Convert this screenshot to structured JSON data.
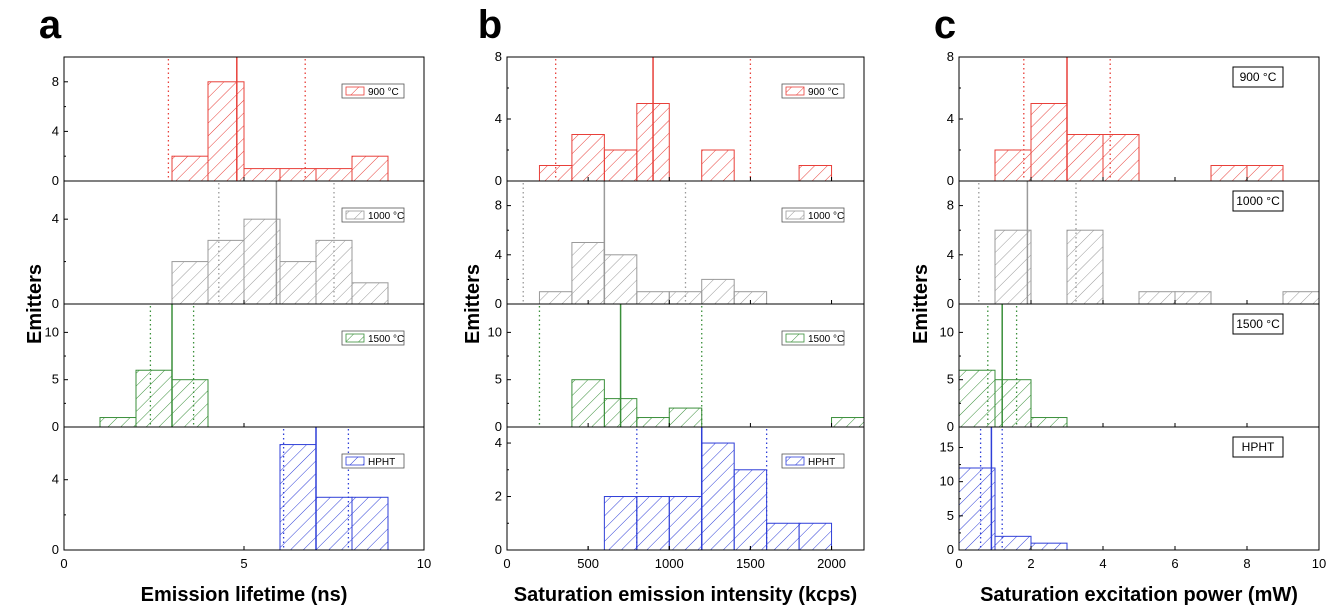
{
  "chart_data": [
    {
      "type": "bar",
      "panel_label": "a",
      "xlabel": "Emission lifetime (ns)",
      "ylabel": "Emitters",
      "xlim": [
        0,
        10
      ],
      "xticks": [
        0,
        5,
        10
      ],
      "bin_width": 1,
      "label_style": "legend",
      "subplots": [
        {
          "label": "900 °C",
          "color": "#e8403a",
          "ylim": [
            0,
            10
          ],
          "yticks": [
            0,
            4,
            8
          ],
          "bin_starts": [
            3,
            4,
            5,
            6,
            7,
            8
          ],
          "values": [
            2,
            8,
            1,
            1,
            1,
            2
          ],
          "mean": 4.8,
          "bounds": [
            2.9,
            6.7
          ]
        },
        {
          "label": "1000 °C",
          "color": "#9a9a9a",
          "ylim": [
            0,
            5.8
          ],
          "yticks": [
            0,
            4
          ],
          "bin_starts": [
            3,
            4,
            5,
            6,
            7,
            8
          ],
          "values": [
            2,
            3,
            4,
            2,
            3,
            1
          ],
          "mean": 5.9,
          "bounds": [
            4.3,
            7.5
          ]
        },
        {
          "label": "1500 °C",
          "color": "#3a8f3a",
          "ylim": [
            0,
            13
          ],
          "yticks": [
            0,
            5,
            10
          ],
          "bin_starts": [
            1,
            2,
            3
          ],
          "values": [
            1,
            6,
            5
          ],
          "mean": 3.0,
          "bounds": [
            2.4,
            3.6
          ]
        },
        {
          "label": "HPHT",
          "color": "#2f3fd8",
          "ylim": [
            0,
            7
          ],
          "yticks": [
            0,
            4
          ],
          "bin_starts": [
            6,
            7,
            8
          ],
          "values": [
            6,
            3,
            3
          ],
          "mean": 7.0,
          "bounds": [
            6.1,
            7.9
          ]
        }
      ]
    },
    {
      "type": "bar",
      "panel_label": "b",
      "xlabel": "Saturation emission intensity (kcps)",
      "ylabel": "Emitters",
      "xlim": [
        0,
        2200
      ],
      "xticks": [
        0,
        500,
        1000,
        1500,
        2000
      ],
      "bin_width": 200,
      "label_style": "legend",
      "subplots": [
        {
          "label": "900 °C",
          "color": "#e8403a",
          "ylim": [
            0,
            8
          ],
          "yticks": [
            0,
            4,
            8
          ],
          "bin_starts": [
            200,
            400,
            600,
            800,
            1200,
            1800
          ],
          "values": [
            1,
            3,
            2,
            5,
            2,
            1
          ],
          "mean": 900,
          "bounds": [
            300,
            1500
          ]
        },
        {
          "label": "1000 °C",
          "color": "#9a9a9a",
          "ylim": [
            0,
            10
          ],
          "yticks": [
            0,
            4,
            8
          ],
          "bin_starts": [
            200,
            400,
            600,
            800,
            1000,
            1200,
            1400
          ],
          "values": [
            1,
            5,
            4,
            1,
            1,
            2,
            1
          ],
          "mean": 600,
          "bounds": [
            100,
            1100
          ]
        },
        {
          "label": "1500 °C",
          "color": "#3a8f3a",
          "ylim": [
            0,
            13
          ],
          "yticks": [
            0,
            5,
            10
          ],
          "bin_starts": [
            400,
            600,
            800,
            1000,
            2000
          ],
          "values": [
            5,
            3,
            1,
            2,
            1
          ],
          "mean": 700,
          "bounds": [
            200,
            1200
          ]
        },
        {
          "label": "HPHT",
          "color": "#2f3fd8",
          "ylim": [
            0,
            4.6
          ],
          "yticks": [
            0,
            2,
            4
          ],
          "bin_starts": [
            600,
            800,
            1000,
            1200,
            1400,
            1600,
            1800
          ],
          "values": [
            2,
            2,
            2,
            4,
            3,
            1,
            1
          ],
          "mean": 1200,
          "bounds": [
            800,
            1600
          ]
        }
      ]
    },
    {
      "type": "bar",
      "panel_label": "c",
      "xlabel": "Saturation excitation power (mW)",
      "ylabel": "Emitters",
      "xlim": [
        0,
        10
      ],
      "xticks": [
        0,
        2,
        4,
        6,
        8,
        10
      ],
      "bin_width": 1,
      "label_style": "box",
      "subplots": [
        {
          "label": "900 °C",
          "color": "#e8403a",
          "ylim": [
            0,
            8
          ],
          "yticks": [
            0,
            4,
            8
          ],
          "bin_starts": [
            1,
            2,
            3,
            4,
            7,
            8
          ],
          "values": [
            2,
            5,
            3,
            3,
            1,
            1
          ],
          "mean": 3.0,
          "bounds": [
            1.8,
            4.2
          ]
        },
        {
          "label": "1000 °C",
          "color": "#9a9a9a",
          "ylim": [
            0,
            10
          ],
          "yticks": [
            0,
            4,
            8
          ],
          "bin_starts": [
            1,
            3,
            5,
            6,
            9
          ],
          "values": [
            6,
            6,
            1,
            1,
            1
          ],
          "mean": 1.9,
          "bounds": [
            0.55,
            3.25
          ]
        },
        {
          "label": "1500 °C",
          "color": "#3a8f3a",
          "ylim": [
            0,
            13
          ],
          "yticks": [
            0,
            5,
            10
          ],
          "bin_starts": [
            0,
            1,
            2
          ],
          "values": [
            6,
            5,
            1
          ],
          "mean": 1.2,
          "bounds": [
            0.8,
            1.6
          ]
        },
        {
          "label": "HPHT",
          "color": "#2f3fd8",
          "ylim": [
            0,
            18
          ],
          "yticks": [
            0,
            5,
            10,
            15
          ],
          "bin_starts": [
            0,
            1,
            2
          ],
          "values": [
            12,
            2,
            1
          ],
          "mean": 0.9,
          "bounds": [
            0.6,
            1.2
          ]
        }
      ]
    }
  ]
}
